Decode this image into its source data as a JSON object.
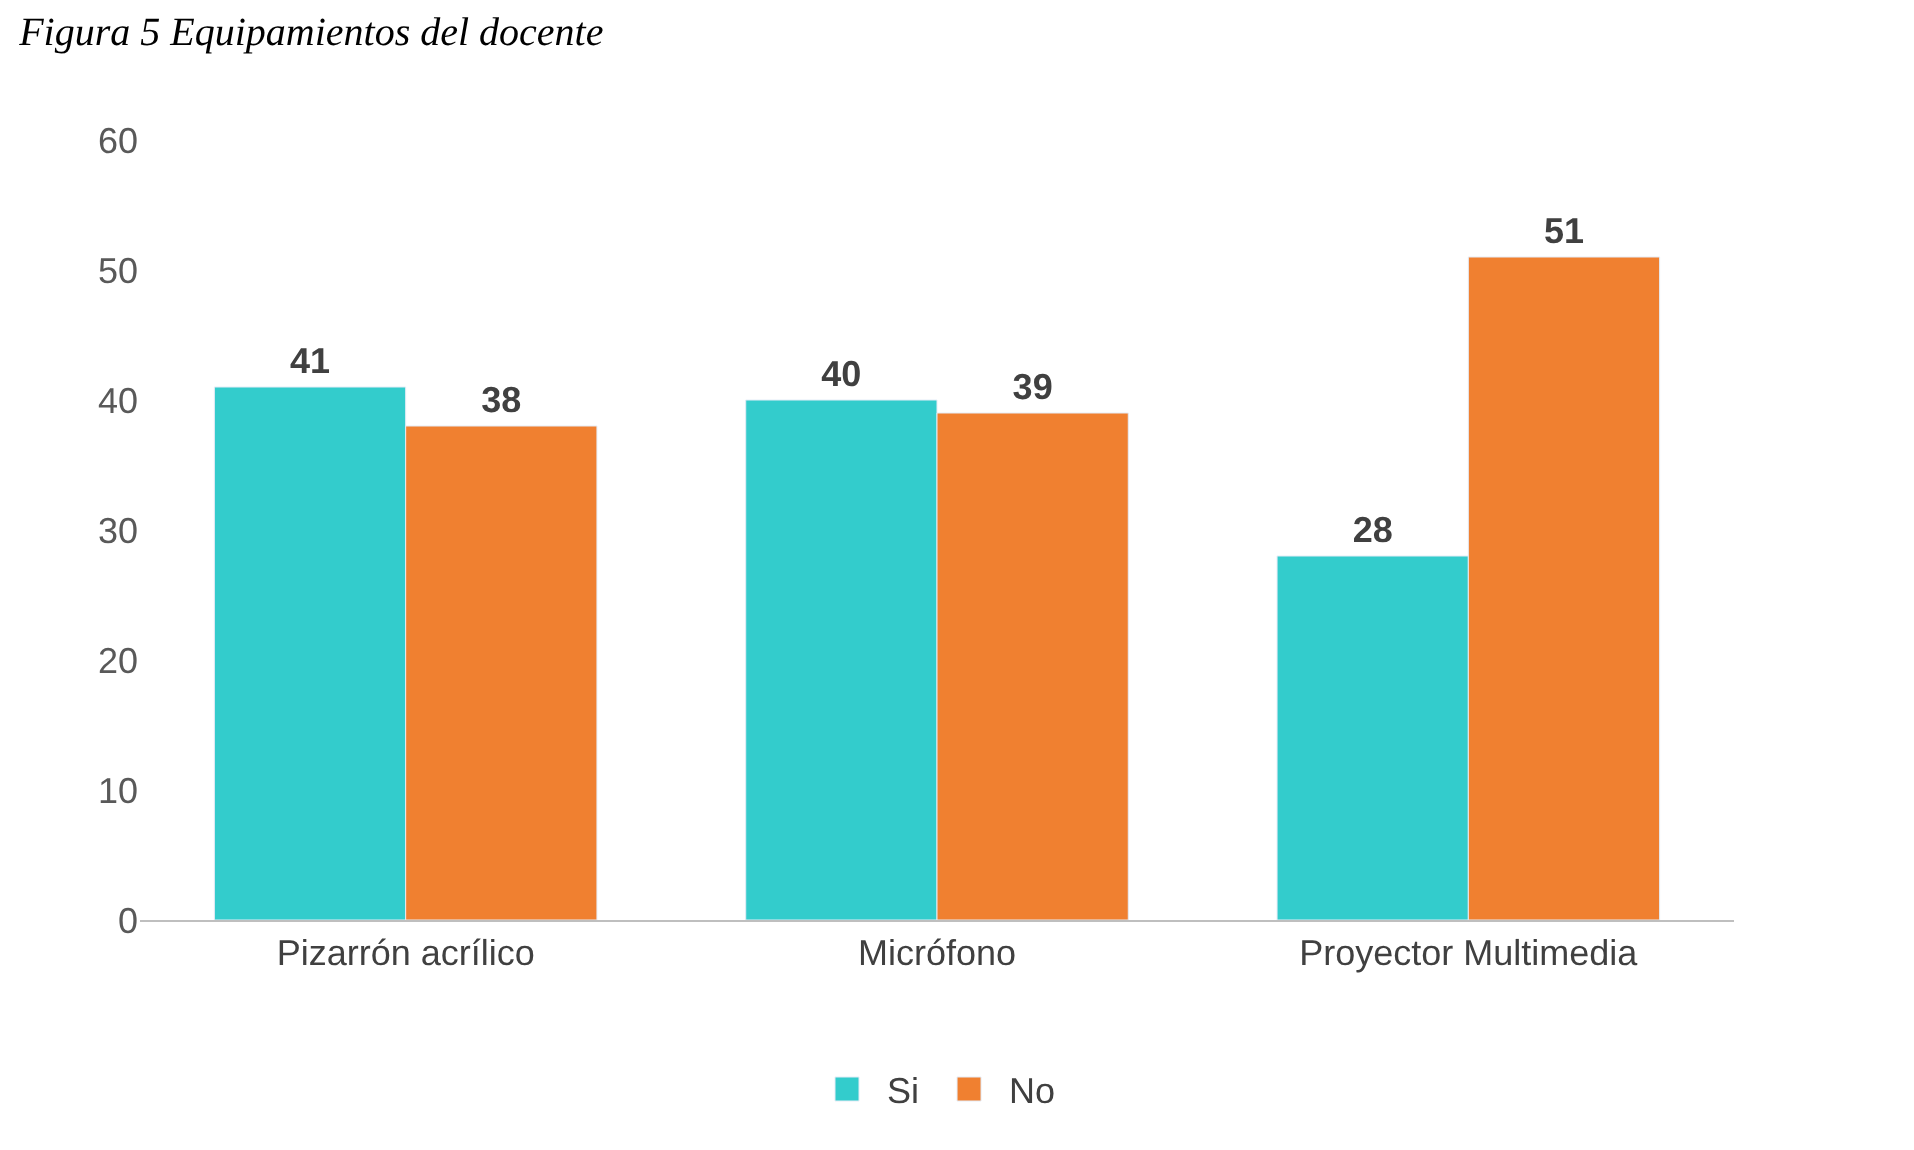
{
  "chart_data": {
    "type": "bar",
    "title": "Figura 5 Equipamientos del docente",
    "categories": [
      "Pizarrón acrílico",
      "Micrófono",
      "Proyector Multimedia"
    ],
    "series": [
      {
        "name": "Si",
        "color": "#33cccc",
        "values": [
          41,
          40,
          28
        ]
      },
      {
        "name": "No",
        "color": "#f08030",
        "values": [
          38,
          39,
          51
        ]
      }
    ],
    "ylim": [
      0,
      60
    ],
    "yticks": [
      0,
      10,
      20,
      30,
      40,
      50,
      60
    ],
    "data_labels": true,
    "legend": "bottom"
  }
}
